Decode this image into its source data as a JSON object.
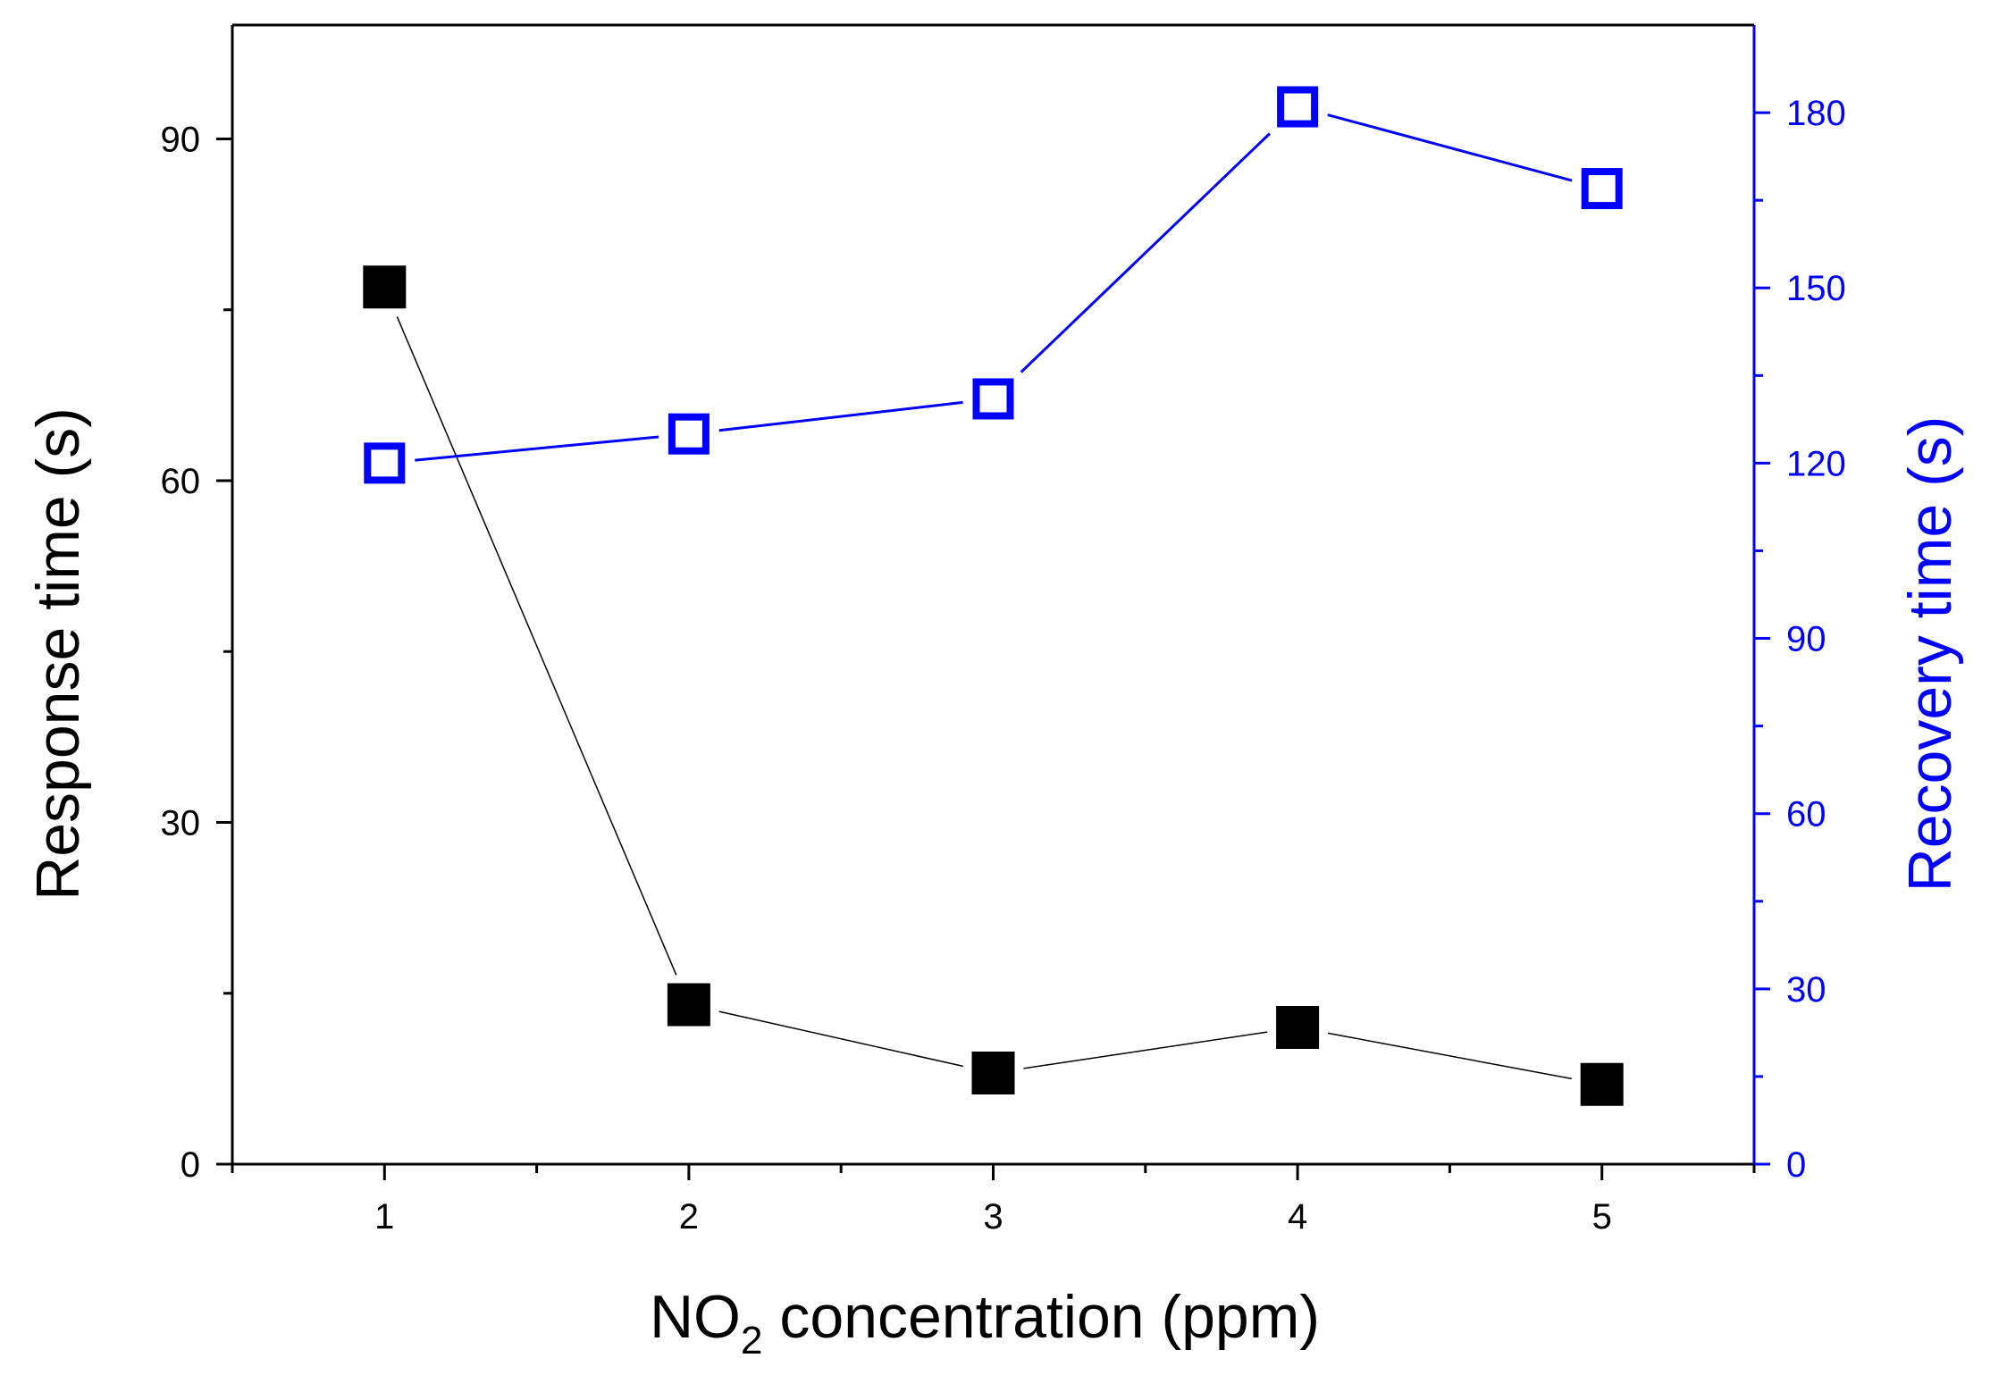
{
  "chart_data": {
    "type": "line",
    "x": [
      1,
      2,
      3,
      4,
      5
    ],
    "xlabel": {
      "pre": "NO",
      "sub": "2",
      "post": " concentration (ppm)"
    },
    "xlim": [
      0.5,
      5.5
    ],
    "xticks": [
      "1",
      "2",
      "3",
      "4",
      "5"
    ],
    "series": [
      {
        "name": "Response time",
        "axis": "left",
        "marker": "filled-square",
        "color": "#000000",
        "values": [
          77,
          14,
          8,
          12,
          7
        ]
      },
      {
        "name": "Recovery time",
        "axis": "right",
        "marker": "open-square",
        "color": "#0000ff",
        "values": [
          120,
          125,
          131,
          181,
          167
        ]
      }
    ],
    "ylabel_left": "Response time (s)",
    "ylim_left": [
      0,
      100
    ],
    "yticks_left": [
      "0",
      "30",
      "60",
      "90"
    ],
    "ylabel_right": "Recovery time (s)",
    "ylim_right": [
      0,
      195
    ],
    "yticks_right": [
      "0",
      "30",
      "60",
      "90",
      "120",
      "150",
      "180"
    ],
    "left_axis_color": "#000000",
    "right_axis_color": "#0000ff",
    "grid": false,
    "legend": "none"
  }
}
